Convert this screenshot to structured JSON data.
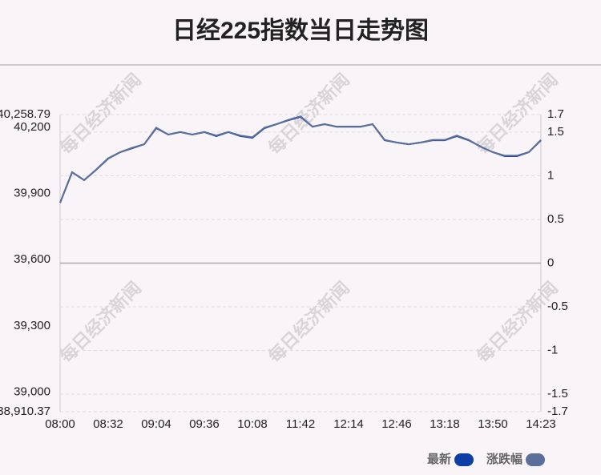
{
  "chart_data": {
    "type": "line",
    "title": "日经225指数当日走势图",
    "watermark": "每日经济新闻",
    "categories": [
      "08:00",
      null,
      null,
      null,
      "08:32",
      null,
      null,
      null,
      "09:04",
      null,
      null,
      null,
      "09:36",
      null,
      null,
      null,
      "10:08",
      null,
      null,
      null,
      "11:42",
      null,
      null,
      null,
      "12:14",
      null,
      null,
      null,
      "12:46",
      null,
      null,
      null,
      "13:18",
      null,
      null,
      null,
      "13:50",
      null,
      null,
      null,
      "14:23"
    ],
    "series": [
      {
        "name": "最新",
        "color": "#0d3ea8",
        "values": [
          39859,
          39997,
          39961,
          40008,
          40059,
          40088,
          40106,
          40124,
          40197,
          40168,
          40179,
          40168,
          40179,
          40161,
          40179,
          40161,
          40153,
          40197,
          40215,
          40233,
          40248,
          40204,
          40215,
          40204,
          40204,
          40204,
          40215,
          40142,
          40132,
          40124,
          40132,
          40142,
          40142,
          40161,
          40142,
          40113,
          40088,
          40070,
          40070,
          40088,
          40142
        ]
      },
      {
        "name": "涨跌幅",
        "color": "#5b6f9a",
        "axis": "y2",
        "values": [
          0.69,
          1.04,
          0.95,
          1.07,
          1.2,
          1.27,
          1.32,
          1.36,
          1.55,
          1.47,
          1.5,
          1.47,
          1.5,
          1.46,
          1.5,
          1.46,
          1.44,
          1.55,
          1.59,
          1.64,
          1.68,
          1.56,
          1.59,
          1.56,
          1.56,
          1.56,
          1.59,
          1.41,
          1.38,
          1.36,
          1.38,
          1.41,
          1.41,
          1.46,
          1.41,
          1.33,
          1.27,
          1.23,
          1.23,
          1.27,
          1.41
        ]
      }
    ],
    "ylim": [
      38910.37,
      40258.79
    ],
    "yticks": [
      {
        "value": 38910.37,
        "label": "38,910.37"
      },
      {
        "value": 39000,
        "label": "39,000"
      },
      {
        "value": 39300,
        "label": "39,300"
      },
      {
        "value": 39600,
        "label": "39,600"
      },
      {
        "value": 39900,
        "label": "39,900"
      },
      {
        "value": 40200,
        "label": "40,200"
      },
      {
        "value": 40258.79,
        "label": "40,258.79"
      }
    ],
    "y2lim": [
      -1.7,
      1.7
    ],
    "y2ticks": [
      -1.7,
      -1.5,
      -1,
      -0.5,
      0,
      0.5,
      1,
      1.5,
      1.7
    ],
    "grid": true
  }
}
